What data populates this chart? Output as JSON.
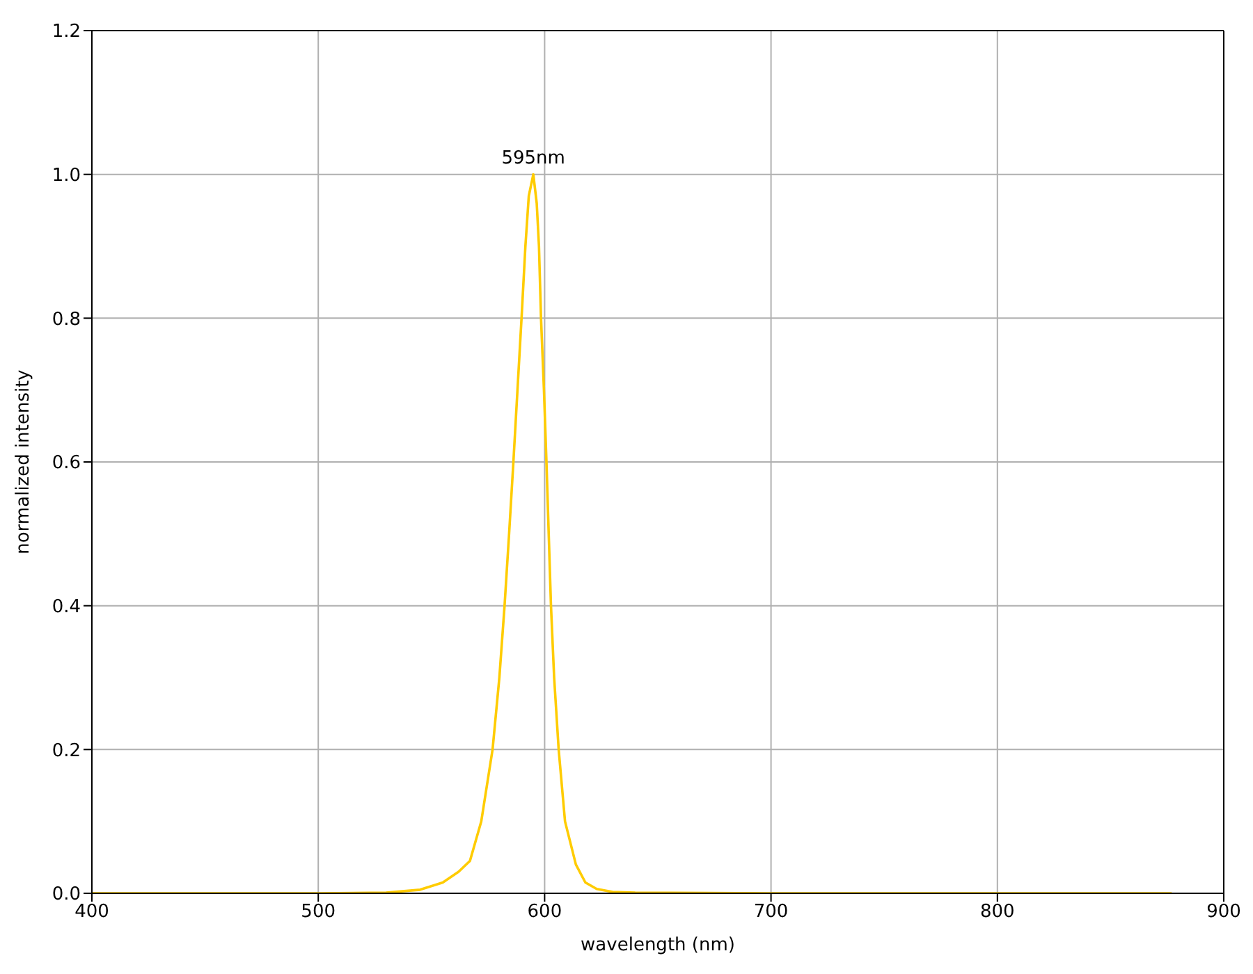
{
  "chart_data": {
    "type": "line",
    "xlabel": "wavelength (nm)",
    "ylabel": "normalized intensity",
    "xlim": [
      400,
      900
    ],
    "xticks": [
      400,
      500,
      600,
      700,
      800,
      900
    ],
    "ylim": [
      0,
      1.2
    ],
    "yticks": [
      {
        "value": 0,
        "label": "0.0"
      },
      0.2,
      0.4,
      0.6,
      0.8,
      {
        "value": 1,
        "label": "1.0"
      },
      1.2
    ],
    "grid": true,
    "marker": "none",
    "line_style": "solid",
    "annotations": [
      {
        "text": "595nm",
        "x": 595,
        "y": 1.0
      }
    ],
    "series": [
      {
        "color": "#ffcc00",
        "x": [
          400,
          450,
          500,
          530,
          545,
          555,
          562,
          567,
          572,
          577,
          580,
          582.3,
          584.3,
          586.2,
          588,
          589.8,
          591.5,
          593,
          595,
          596.5,
          597.5,
          598.4,
          599.7,
          600.8,
          601.8,
          602.8,
          604.2,
          606.2,
          609,
          613.8,
          618,
          623,
          630,
          640,
          700,
          800,
          877
        ],
        "values": [
          0,
          0,
          0,
          0.001,
          0.005,
          0.015,
          0.03,
          0.045,
          0.1,
          0.2,
          0.3,
          0.4,
          0.5,
          0.6,
          0.7,
          0.8,
          0.9,
          0.97,
          1.0,
          0.96,
          0.9,
          0.8,
          0.7,
          0.6,
          0.5,
          0.4,
          0.3,
          0.2,
          0.1,
          0.04,
          0.015,
          0.006,
          0.002,
          0.001,
          0,
          0,
          0
        ]
      }
    ]
  }
}
